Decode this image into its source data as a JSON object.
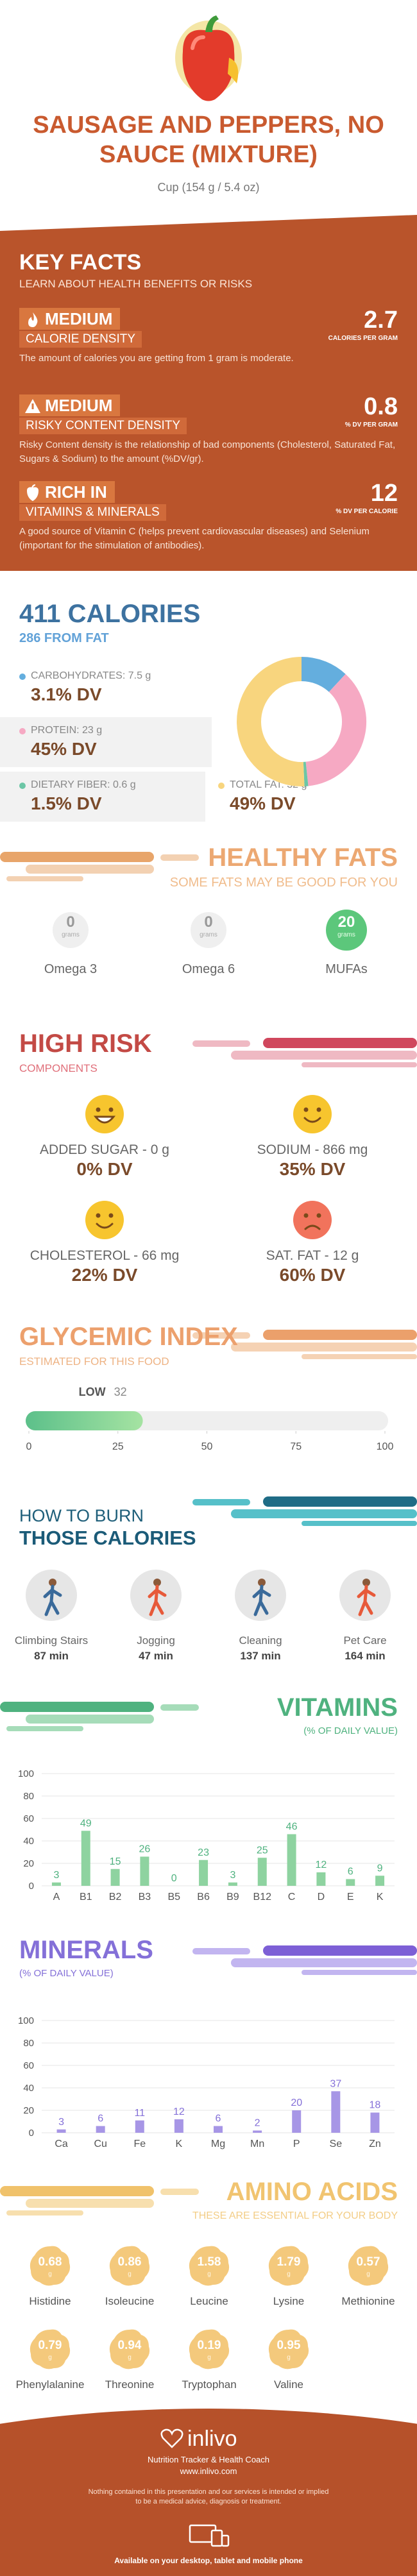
{
  "header": {
    "title": "SAUSAGE AND PEPPERS, NO SAUCE (MIXTURE)",
    "serving": "Cup (154 g / 5.4 oz)"
  },
  "key_facts": {
    "title": "KEY FACTS",
    "subtitle": "LEARN ABOUT HEALTH BENEFITS OR RISKS",
    "items": [
      {
        "level": "MEDIUM",
        "label": "CALORIE DENSITY",
        "value": "2.7",
        "unit": "CALORIES PER GRAM",
        "desc": "The amount of calories you are getting from 1 gram is moderate."
      },
      {
        "level": "MEDIUM",
        "label": "RISKY CONTENT DENSITY",
        "value": "0.8",
        "unit": "% DV PER GRAM",
        "desc": "Risky Content density is the relationship of bad components (Cholesterol, Saturated Fat, Sugars & Sodium) to the amount (%DV/gr)."
      },
      {
        "level": "RICH IN",
        "label": "VITAMINS & MINERALS",
        "value": "12",
        "unit": "% DV PER CALORIE",
        "desc": "A good source of Vitamin C (helps prevent cardiovascular diseases) and Selenium (important for the stimulation of antibodies)."
      }
    ]
  },
  "calories": {
    "title": "411 CALORIES",
    "subtitle": "286 FROM FAT",
    "macros": [
      {
        "label": "CARBOHYDRATES: 7.5 g",
        "grams": 7.5,
        "dv": "3.1% DV",
        "color": "#64aede"
      },
      {
        "label": "PROTEIN: 23 g",
        "grams": 23,
        "dv": "45% DV",
        "color": "#f6a9c3"
      },
      {
        "label": "DIETARY FIBER: 0.6 g",
        "grams": 0.6,
        "dv": "1.5% DV",
        "color": "#6cc6a6"
      },
      {
        "label": "TOTAL FAT: 32 g",
        "grams": 32,
        "dv": "49% DV",
        "color": "#f8d57e"
      }
    ]
  },
  "healthy_fats": {
    "title": "HEALTHY FATS",
    "subtitle": "SOME FATS MAY BE GOOD FOR YOU",
    "items": [
      {
        "value": "0",
        "unit": "grams",
        "name": "Omega 3"
      },
      {
        "value": "0",
        "unit": "grams",
        "name": "Omega 6"
      },
      {
        "value": "20",
        "unit": "grams",
        "name": "MUFAs"
      }
    ]
  },
  "high_risk": {
    "title": "HIGH RISK",
    "subtitle": "COMPONENTS",
    "items": [
      {
        "label": "ADDED SUGAR - 0 g",
        "dv": "0% DV",
        "face": "grin"
      },
      {
        "label": "SODIUM - 866 mg",
        "dv": "35% DV",
        "face": "smile"
      },
      {
        "label": "CHOLESTEROL - 66 mg",
        "dv": "22% DV",
        "face": "smile"
      },
      {
        "label": "SAT. FAT - 12 g",
        "dv": "60% DV",
        "face": "sad"
      }
    ]
  },
  "glycemic": {
    "title": "GLYCEMIC INDEX",
    "subtitle": "ESTIMATED FOR THIS FOOD",
    "level": "LOW",
    "value": 32,
    "range": [
      0,
      100
    ],
    "ticks": [
      0,
      25,
      50,
      75,
      100
    ]
  },
  "burn": {
    "title": [
      "HOW TO BURN",
      "THOSE CALORIES"
    ],
    "activities": [
      {
        "name": "Climbing Stairs",
        "time": "87 min"
      },
      {
        "name": "Jogging",
        "time": "47 min"
      },
      {
        "name": "Cleaning",
        "time": "137 min"
      },
      {
        "name": "Pet Care",
        "time": "164 min"
      }
    ]
  },
  "chart_data": [
    {
      "type": "bar",
      "title": "VITAMINS",
      "subtitle": "(% OF DAILY VALUE)",
      "categories": [
        "A",
        "B1",
        "B2",
        "B3",
        "B5",
        "B6",
        "B9",
        "B12",
        "C",
        "D",
        "E",
        "K"
      ],
      "values": [
        3,
        49,
        15,
        26,
        0,
        23,
        3,
        25,
        46,
        12,
        6,
        9
      ],
      "color": "#8ed3a0",
      "label_color": "#4fb27f",
      "ylim": [
        0,
        100
      ],
      "yticks": [
        0,
        20,
        40,
        60,
        80,
        100
      ],
      "grid": true
    },
    {
      "type": "bar",
      "title": "MINERALS",
      "subtitle": "(% OF DAILY VALUE)",
      "categories": [
        "Ca",
        "Cu",
        "Fe",
        "K",
        "Mg",
        "Mn",
        "P",
        "Se",
        "Zn"
      ],
      "values": [
        3,
        6,
        11,
        12,
        6,
        2,
        20,
        37,
        18
      ],
      "color": "#a796e6",
      "label_color": "#8470d8",
      "ylim": [
        0,
        100
      ],
      "yticks": [
        0,
        20,
        40,
        60,
        80,
        100
      ],
      "grid": true
    }
  ],
  "amino_acids": {
    "title": "AMINO ACIDS",
    "subtitle": "THESE ARE ESSENTIAL FOR YOUR BODY",
    "items": [
      {
        "name": "Histidine",
        "value": "0.68",
        "unit": "g"
      },
      {
        "name": "Isoleucine",
        "value": "0.86",
        "unit": "g"
      },
      {
        "name": "Leucine",
        "value": "1.58",
        "unit": "g"
      },
      {
        "name": "Lysine",
        "value": "1.79",
        "unit": "g"
      },
      {
        "name": "Methionine",
        "value": "0.57",
        "unit": "g"
      },
      {
        "name": "Phenylalanine",
        "value": "0.79",
        "unit": "g"
      },
      {
        "name": "Threonine",
        "value": "0.94",
        "unit": "g"
      },
      {
        "name": "Tryptophan",
        "value": "0.19",
        "unit": "g"
      },
      {
        "name": "Valine",
        "value": "0.95",
        "unit": "g"
      }
    ]
  },
  "footer": {
    "brand": "inlivo",
    "tagline": "Nutrition Tracker & Health Coach",
    "url": "www.inlivo.com",
    "disclaimer": [
      "Nothing contained in this presentation and our services is intended or implied",
      "to be a medical advice, diagnosis or treatment."
    ],
    "available": "Available on your desktop, tablet and mobile phone"
  }
}
